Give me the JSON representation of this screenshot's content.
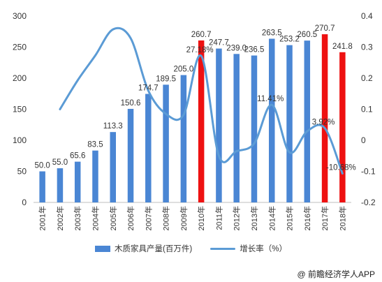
{
  "chart_data": {
    "type": "bar",
    "categories": [
      "2001年",
      "2002年",
      "2003年",
      "2004年",
      "2005年",
      "2006年",
      "2007年",
      "2008年",
      "2009年",
      "2010年",
      "2011年",
      "2012年",
      "2013年",
      "2014年",
      "2015年",
      "2016年",
      "2017年",
      "2018年"
    ],
    "series": [
      {
        "name": "木质家具产量(百万件)",
        "type": "bar",
        "values": [
          50.0,
          55.0,
          65.6,
          83.5,
          113.3,
          150.6,
          174.7,
          189.5,
          205.0,
          260.7,
          247.7,
          239.0,
          236.5,
          263.5,
          253.2,
          260.5,
          270.7,
          241.8
        ],
        "data_labels": [
          "50.0",
          "55.0",
          "65.6",
          "83.5",
          "113.3",
          "150.6",
          "174.7",
          "189.5",
          "205.0",
          "260.7",
          "247.7",
          "239.0",
          "236.5",
          "263.5",
          "253.2",
          "260.5",
          "270.7",
          "241.8"
        ],
        "color": "#4a86d4",
        "highlight_color": "#ee1111",
        "highlight_categories": [
          "2010年",
          "2017年",
          "2018年"
        ]
      },
      {
        "name": "增长率（%）",
        "type": "line",
        "axis": "right",
        "values": [
          null,
          0.1,
          0.193,
          0.273,
          0.357,
          0.329,
          0.16,
          0.085,
          0.082,
          0.2718,
          -0.05,
          -0.035,
          -0.01,
          0.1141,
          -0.039,
          0.029,
          0.0392,
          -0.1068
        ],
        "color": "#5b9bd5"
      }
    ],
    "line_annotations": [
      {
        "category": "2010年",
        "value": 0.2718,
        "text": "27.18%"
      },
      {
        "category": "2014年",
        "value": 0.1141,
        "text": "11.41%"
      },
      {
        "category": "2017年",
        "value": 0.0392,
        "text": "3.92%"
      },
      {
        "category": "2018年",
        "value": -0.1068,
        "text": "-10.68%"
      }
    ],
    "yaxis_left": {
      "min": 0,
      "max": 300,
      "ticks": [
        "0",
        "50",
        "100",
        "150",
        "200",
        "250",
        "300"
      ]
    },
    "yaxis_right": {
      "min": -0.2,
      "max": 0.4,
      "ticks": [
        "-0.2",
        "-0.1",
        "0",
        "0.1",
        "0.2",
        "0.3",
        "0.4"
      ]
    },
    "grid": false,
    "legend_position": "bottom"
  },
  "legend": {
    "bar_label": "木质家具产量(百万件)",
    "line_label": "增长率（%）"
  },
  "credit": "@ 前瞻经济学人APP"
}
